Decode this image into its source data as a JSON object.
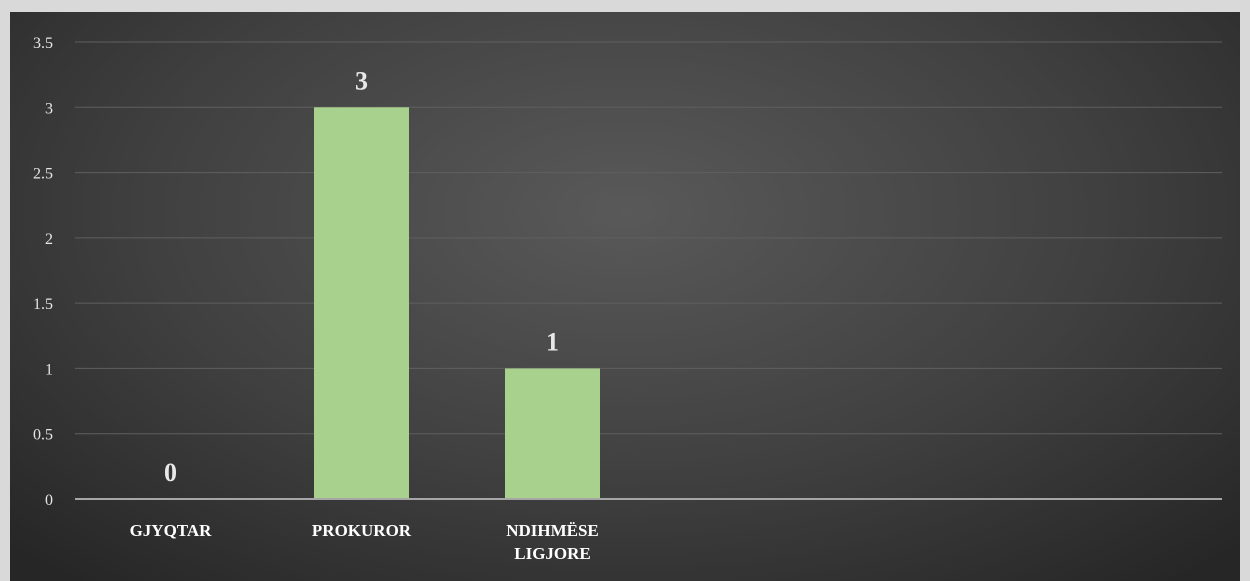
{
  "chart_data": {
    "type": "bar",
    "categories": [
      [
        "GJYQTAR"
      ],
      [
        "PROKUROR"
      ],
      [
        "NDIHMËSE",
        "LIGJORE"
      ]
    ],
    "values": [
      0,
      3,
      1
    ],
    "data_labels": [
      "0",
      "3",
      "1"
    ],
    "y_ticks": [
      "0",
      "0.5",
      "1",
      "1.5",
      "2",
      "2.5",
      "3",
      "3.5"
    ],
    "ylim": [
      0,
      3.5
    ],
    "title": "",
    "xlabel": "",
    "ylabel": "",
    "grid": true,
    "legend": "none",
    "colors": {
      "bar": "#a9d18e",
      "gridline": "#5f5f5f",
      "axis": "#a6a6a6",
      "text": "#ffffff"
    }
  }
}
